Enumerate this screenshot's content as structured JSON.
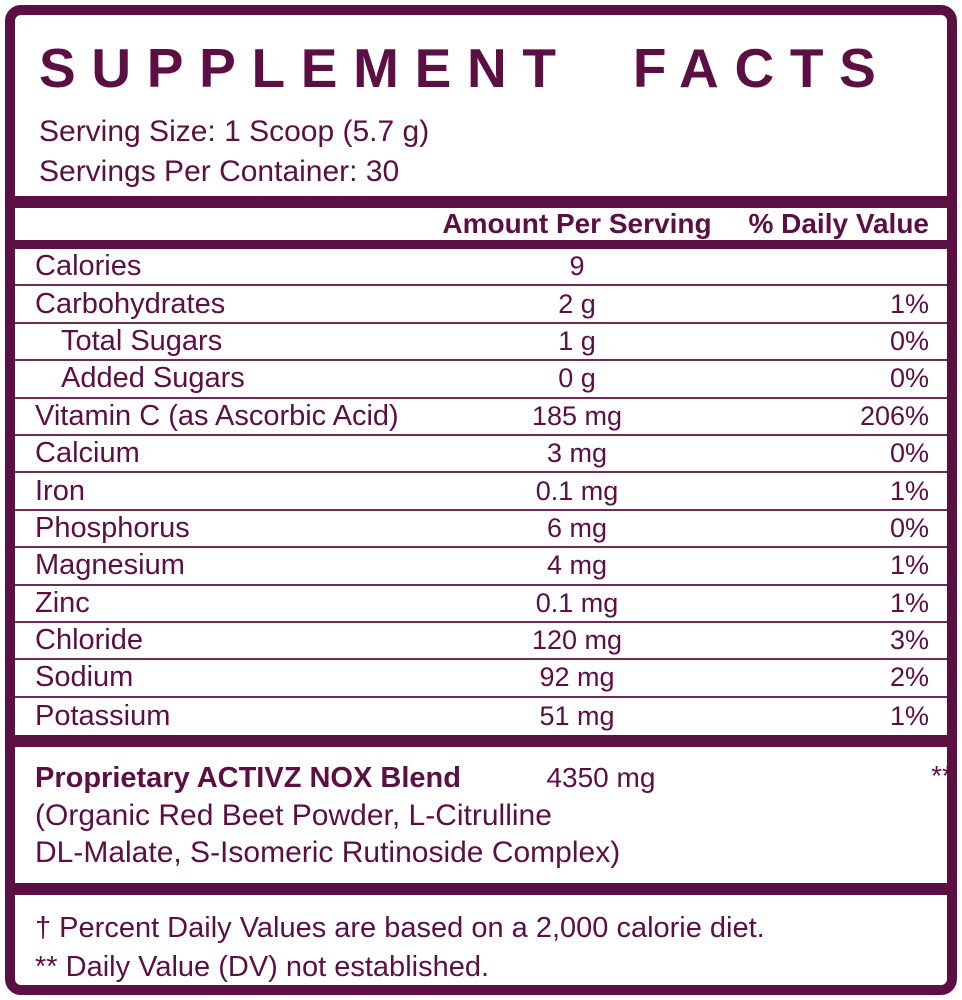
{
  "colors": {
    "maroon": "#5c0f43",
    "background": "#ffffff",
    "thin_separator": "#6f2a58"
  },
  "title": "SUPPLEMENT FACTS",
  "serving": {
    "size_line": "Serving Size: 1 Scoop (5.7 g)",
    "per_container_line": "Servings Per Container: 30"
  },
  "table": {
    "amount_header": "Amount Per Serving",
    "dv_header": "% Daily Value",
    "rows": [
      {
        "name": "Calories",
        "amount": "9",
        "dv": "",
        "indent": false
      },
      {
        "name": "Carbohydrates",
        "amount": "2 g",
        "dv": "1%",
        "indent": false
      },
      {
        "name": "Total Sugars",
        "amount": "1 g",
        "dv": "0%",
        "indent": true
      },
      {
        "name": "Added Sugars",
        "amount": "0 g",
        "dv": "0%",
        "indent": true
      },
      {
        "name": "Vitamin C (as Ascorbic Acid)",
        "amount": "185 mg",
        "dv": "206%",
        "indent": false
      },
      {
        "name": "Calcium",
        "amount": "3 mg",
        "dv": "0%",
        "indent": false
      },
      {
        "name": "Iron",
        "amount": "0.1 mg",
        "dv": "1%",
        "indent": false
      },
      {
        "name": "Phosphorus",
        "amount": "6 mg",
        "dv": "0%",
        "indent": false
      },
      {
        "name": "Magnesium",
        "amount": "4 mg",
        "dv": "1%",
        "indent": false
      },
      {
        "name": "Zinc",
        "amount": "0.1 mg",
        "dv": "1%",
        "indent": false
      },
      {
        "name": "Chloride",
        "amount": "120 mg",
        "dv": "3%",
        "indent": false
      },
      {
        "name": "Sodium",
        "amount": "92 mg",
        "dv": "2%",
        "indent": false
      },
      {
        "name": "Potassium",
        "amount": "51 mg",
        "dv": "1%",
        "indent": false
      }
    ]
  },
  "blend": {
    "name": "Proprietary ACTIVZ NOX Blend",
    "amount": "4350 mg",
    "dv": "**",
    "ingredients_lines": [
      "(Organic Red Beet Powder, L-Citrulline",
      "DL-Malate, S-Isomeric Rutinoside Complex)"
    ]
  },
  "footnotes": [
    "† Percent Daily Values are based on a 2,000 calorie diet.",
    "** Daily Value (DV) not established."
  ]
}
